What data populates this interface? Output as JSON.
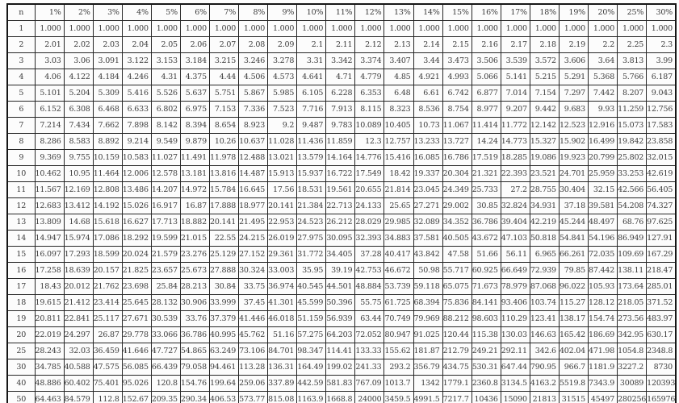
{
  "table": {
    "corner_label": "n",
    "headers": [
      "1%",
      "2%",
      "3%",
      "4%",
      "5%",
      "6%",
      "7%",
      "8%",
      "9%",
      "10%",
      "11%",
      "12%",
      "13%",
      "14%",
      "15%",
      "16%",
      "17%",
      "18%",
      "19%",
      "20%",
      "25%",
      "30%"
    ],
    "rows": [
      {
        "n": "1",
        "values": [
          "1.000",
          "1.000",
          "1.000",
          "1.000",
          "1.000",
          "1.000",
          "1.000",
          "1.000",
          "1.000",
          "1.000",
          "1.000",
          "1.000",
          "1.000",
          "1.000",
          "1.000",
          "1.000",
          "1.000",
          "1.000",
          "1.000",
          "1.000",
          "1.000",
          "1.000"
        ]
      },
      {
        "n": "2",
        "values": [
          "2.01",
          "2.02",
          "2.03",
          "2.04",
          "2.05",
          "2.06",
          "2.07",
          "2.08",
          "2.09",
          "2.1",
          "2.11",
          "2.12",
          "2.13",
          "2.14",
          "2.15",
          "2.16",
          "2.17",
          "2.18",
          "2.19",
          "2.2",
          "2.25",
          "2.3"
        ]
      },
      {
        "n": "3",
        "values": [
          "3.03",
          "3.06",
          "3.091",
          "3.122",
          "3.153",
          "3.184",
          "3.215",
          "3.246",
          "3.278",
          "3.31",
          "3.342",
          "3.374",
          "3.407",
          "3.44",
          "3.473",
          "3.506",
          "3.539",
          "3.572",
          "3.606",
          "3.64",
          "3.813",
          "3.99"
        ]
      },
      {
        "n": "4",
        "values": [
          "4.06",
          "4.122",
          "4.184",
          "4.246",
          "4.31",
          "4.375",
          "4.44",
          "4.506",
          "4.573",
          "4.641",
          "4.71",
          "4.779",
          "4.85",
          "4.921",
          "4.993",
          "5.066",
          "5.141",
          "5.215",
          "5.291",
          "5.368",
          "5.766",
          "6.187"
        ]
      },
      {
        "n": "5",
        "values": [
          "5.101",
          "5.204",
          "5.309",
          "5.416",
          "5.526",
          "5.637",
          "5.751",
          "5.867",
          "5.985",
          "6.105",
          "6.228",
          "6.353",
          "6.48",
          "6.61",
          "6.742",
          "6.877",
          "7.014",
          "7.154",
          "7.297",
          "7.442",
          "8.207",
          "9.043"
        ]
      },
      {
        "n": "6",
        "values": [
          "6.152",
          "6.308",
          "6.468",
          "6.633",
          "6.802",
          "6.975",
          "7.153",
          "7.336",
          "7.523",
          "7.716",
          "7.913",
          "8.115",
          "8.323",
          "8.536",
          "8.754",
          "8.977",
          "9.207",
          "9.442",
          "9.683",
          "9.93",
          "11.259",
          "12.756"
        ]
      },
      {
        "n": "7",
        "values": [
          "7.214",
          "7.434",
          "7.662",
          "7.898",
          "8.142",
          "8.394",
          "8.654",
          "8.923",
          "9.2",
          "9.487",
          "9.783",
          "10.089",
          "10.405",
          "10.73",
          "11.067",
          "11.414",
          "11.772",
          "12.142",
          "12.523",
          "12.916",
          "15.073",
          "17.583"
        ]
      },
      {
        "n": "8",
        "values": [
          "8.286",
          "8.583",
          "8.892",
          "9.214",
          "9.549",
          "9.879",
          "10.26",
          "10.637",
          "11.028",
          "11.436",
          "11.859",
          "12.3",
          "12.757",
          "13.233",
          "13.727",
          "14.24",
          "14.773",
          "15.327",
          "15.902",
          "16.499",
          "19.842",
          "23.858"
        ]
      },
      {
        "n": "9",
        "values": [
          "9.369",
          "9.755",
          "10.159",
          "10.583",
          "11.027",
          "11.491",
          "11.978",
          "12.488",
          "13.021",
          "13.579",
          "14.164",
          "14.776",
          "15.416",
          "16.085",
          "16.786",
          "17.519",
          "18.285",
          "19.086",
          "19.923",
          "20.799",
          "25.802",
          "32.015"
        ]
      },
      {
        "n": "10",
        "values": [
          "10.462",
          "10.95",
          "11.464",
          "12.006",
          "12.578",
          "13.181",
          "13.816",
          "14.487",
          "15.913",
          "15.937",
          "16.722",
          "17.549",
          "18.42",
          "19.337",
          "20.304",
          "21.321",
          "22.393",
          "23.521",
          "24.701",
          "25.959",
          "33.253",
          "42.619"
        ]
      },
      {
        "n": "11",
        "values": [
          "11.567",
          "12.169",
          "12.808",
          "13.486",
          "14.207",
          "14.972",
          "15.784",
          "16.645",
          "17.56",
          "18.531",
          "19.561",
          "20.655",
          "21.814",
          "23.045",
          "24.349",
          "25.733",
          "27.2",
          "28.755",
          "30.404",
          "32.15",
          "42.566",
          "56.405"
        ]
      },
      {
        "n": "12",
        "values": [
          "12.683",
          "13.412",
          "14.192",
          "15.026",
          "16.917",
          "16.87",
          "17.888",
          "18.977",
          "20.141",
          "21.384",
          "22.713",
          "24.133",
          "25.65",
          "27.271",
          "29.002",
          "30.85",
          "32.824",
          "34.931",
          "37.18",
          "39.581",
          "54.208",
          "74.327"
        ]
      },
      {
        "n": "13",
        "values": [
          "13.809",
          "14.68",
          "15.618",
          "16.627",
          "17.713",
          "18.882",
          "20.141",
          "21.495",
          "22.953",
          "24.523",
          "26.212",
          "28.029",
          "29.985",
          "32.089",
          "34.352",
          "36.786",
          "39.404",
          "42.219",
          "45.244",
          "48.497",
          "68.76",
          "97.625"
        ]
      },
      {
        "n": "14",
        "values": [
          "14.947",
          "15.974",
          "17.086",
          "18.292",
          "19.599",
          "21.015",
          "22.55",
          "24.215",
          "26.019",
          "27.975",
          "30.095",
          "32.393",
          "34.883",
          "37.581",
          "40.505",
          "43.672",
          "47.103",
          "50.818",
          "54.841",
          "54.196",
          "86.949",
          "127.91"
        ]
      },
      {
        "n": "15",
        "values": [
          "16.097",
          "17.293",
          "18.599",
          "20.024",
          "21.579",
          "23.276",
          "25.129",
          "27.152",
          "29.361",
          "31.772",
          "34.405",
          "37.28",
          "40.417",
          "43.842",
          "47.58",
          "51.66",
          "56.11",
          "6.965",
          "66.261",
          "72.035",
          "109.69",
          "167.29"
        ]
      },
      {
        "n": "16",
        "values": [
          "17.258",
          "18.639",
          "20.157",
          "21.825",
          "23.657",
          "25.673",
          "27.888",
          "30.324",
          "33.003",
          "35.95",
          "39.19",
          "42.753",
          "46.672",
          "50.98",
          "55.717",
          "60.925",
          "66.649",
          "72.939",
          "79.85",
          "87.442",
          "138.11",
          "218.47"
        ]
      },
      {
        "n": "17",
        "values": [
          "18.43",
          "20.012",
          "21.762",
          "23.698",
          "25.84",
          "28.213",
          "30.84",
          "33.75",
          "36.974",
          "40.545",
          "44.501",
          "48.884",
          "53.739",
          "59.118",
          "65.075",
          "71.673",
          "78.979",
          "87.068",
          "96.022",
          "105.93",
          "173.64",
          "285.01"
        ]
      },
      {
        "n": "18",
        "values": [
          "19.615",
          "21.412",
          "23.414",
          "25.645",
          "28.132",
          "30.906",
          "33.999",
          "37.45",
          "41.301",
          "45.599",
          "50.396",
          "55.75",
          "61.725",
          "68.394",
          "75.836",
          "84.141",
          "93.406",
          "103.74",
          "115.27",
          "128.12",
          "218.05",
          "371.52"
        ]
      },
      {
        "n": "19",
        "values": [
          "20.811",
          "22.841",
          "25.117",
          "27.671",
          "30.539",
          "33.76",
          "37.379",
          "41.446",
          "46.018",
          "51.159",
          "56.939",
          "63.44",
          "70.749",
          "79.969",
          "88.212",
          "98.603",
          "110.29",
          "123.41",
          "138.17",
          "154.74",
          "273.56",
          "483.97"
        ]
      },
      {
        "n": "20",
        "values": [
          "22.019",
          "24.297",
          "26.87",
          "29.778",
          "33.066",
          "36.786",
          "40.995",
          "45.762",
          "51.16",
          "57.275",
          "64.203",
          "72.052",
          "80.947",
          "91.025",
          "120.44",
          "115.38",
          "130.03",
          "146.63",
          "165.42",
          "186.69",
          "342.95",
          "630.17"
        ]
      },
      {
        "n": "25",
        "values": [
          "28.243",
          "32.03",
          "36.459",
          "41.646",
          "47.727",
          "54.865",
          "63.249",
          "73.106",
          "84.701",
          "98.347",
          "114.41",
          "133.33",
          "155.62",
          "181.87",
          "212.79",
          "249.21",
          "292.11",
          "342.6",
          "402.04",
          "471.98",
          "1054.8",
          "2348.8"
        ]
      },
      {
        "n": "30",
        "values": [
          "34.785",
          "40.588",
          "47.575",
          "56.085",
          "66.439",
          "79.058",
          "94.461",
          "113.28",
          "136.31",
          "164.49",
          "199.02",
          "241.33",
          "293.2",
          "356.79",
          "434.75",
          "530.31",
          "647.44",
          "790.95",
          "966.7",
          "1181.9",
          "3227.2",
          "8730"
        ]
      },
      {
        "n": "40",
        "values": [
          "48.886",
          "60.402",
          "75.401",
          "95.026",
          "120.8",
          "154.76",
          "199.64",
          "259.06",
          "337.89",
          "442.59",
          "581.83",
          "767.09",
          "1013.7",
          "1342",
          "1779.1",
          "2360.8",
          "3134.5",
          "4163.2",
          "5519.8",
          "7343.9",
          "30089",
          "120393"
        ]
      },
      {
        "n": "50",
        "values": [
          "64.463",
          "84.579",
          "112.8",
          "152.67",
          "209.35",
          "290.34",
          "406.53",
          "573.77",
          "815.08",
          "1163.9",
          "1668.8",
          "24000",
          "3459.5",
          "4991.5",
          "7217.7",
          "10436",
          "15090",
          "21813",
          "31515",
          "45497",
          "280256",
          "165976"
        ]
      }
    ]
  },
  "colors": {
    "page_background": "#fefefe",
    "table_background": "#fcfcfc",
    "border": "#262626",
    "text": "#3b3b3b"
  }
}
